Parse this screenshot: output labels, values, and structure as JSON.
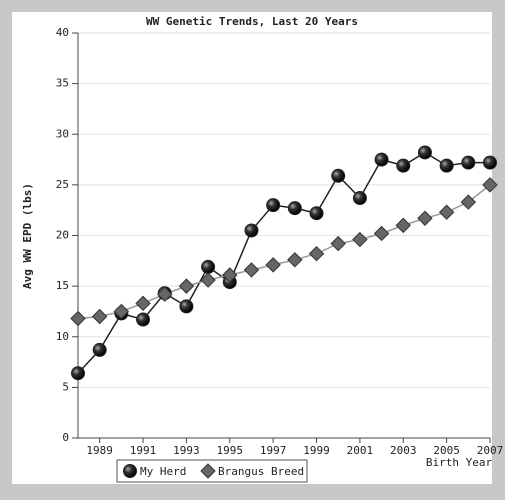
{
  "chart_data": {
    "type": "line",
    "title": "WW Genetic Trends, Last 20 Years",
    "y_label": "Avg WW EPD (lbs)",
    "x_label": "Birth Year",
    "x": [
      1988,
      1989,
      1990,
      1991,
      1992,
      1993,
      1994,
      1995,
      1996,
      1997,
      1998,
      1999,
      2000,
      2001,
      2002,
      2003,
      2004,
      2005,
      2006,
      2007
    ],
    "series": [
      {
        "name": "My Herd",
        "color": "#222222",
        "marker": "circle",
        "values": [
          6.4,
          8.7,
          12.3,
          11.7,
          14.3,
          13.0,
          16.9,
          15.4,
          20.5,
          23.0,
          22.7,
          22.2,
          25.9,
          23.7,
          27.5,
          26.9,
          28.2,
          26.9,
          27.2,
          27.2
        ]
      },
      {
        "name": "Brangus Breed",
        "color": "#999999",
        "marker": "diamond",
        "values": [
          11.8,
          12.0,
          12.5,
          13.3,
          14.2,
          15.0,
          15.6,
          16.1,
          16.6,
          17.1,
          17.6,
          18.2,
          19.2,
          19.6,
          20.2,
          21.0,
          21.7,
          22.3,
          23.3,
          25.0
        ]
      }
    ],
    "xlim": [
      1988,
      2007
    ],
    "xticks": [
      1989,
      1991,
      1993,
      1995,
      1997,
      1999,
      2001,
      2003,
      2005,
      2007
    ],
    "ylim": [
      0,
      40
    ],
    "yticks": [
      0,
      5,
      10,
      15,
      20,
      25,
      30,
      35,
      40
    ],
    "grid": true
  }
}
